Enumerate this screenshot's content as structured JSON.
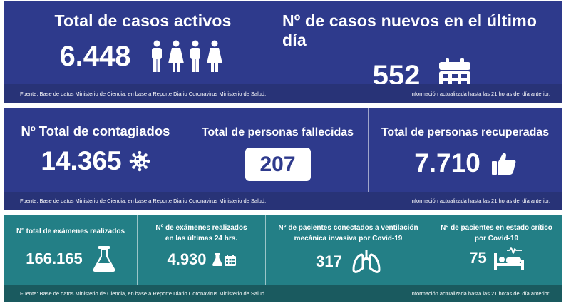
{
  "row1": {
    "active_cases": {
      "title": "Total de casos activos",
      "value": "6.448",
      "icon": "people-icon"
    },
    "new_cases": {
      "title": "Nº de casos nuevos en el último día",
      "value": "552",
      "icon": "calendar-icon"
    },
    "source": "Fuente: Base de datos Ministerio de Ciencia, en base a Reporte Diario Coronavirus Ministerio de Salud.",
    "updated": "Información actualizada hasta las 21 horas  del día anterior."
  },
  "row2": {
    "total_infected": {
      "title": "Nº Total de contagiados",
      "value": "14.365",
      "icon": "virus-icon"
    },
    "deceased": {
      "title": "Total de personas fallecidas",
      "value": "207"
    },
    "recovered": {
      "title": "Total de personas recuperadas",
      "value": "7.710",
      "icon": "thumbs-up-icon"
    },
    "source": "Fuente: Base de datos Ministerio de Ciencia, en base a Reporte Diario Coronavirus Ministerio de Salud.",
    "updated": "Información actualizada hasta las 21 horas  del día anterior."
  },
  "row3": {
    "exams_total": {
      "title": "Nº total de exámenes realizados",
      "value": "166.165",
      "icon": "flask-icon"
    },
    "exams_24h": {
      "title_line1": "Nº de exámenes realizados",
      "title_line2": "en las últimas 24 hrs.",
      "value": "4.930",
      "icon": "flask-calendar-icon"
    },
    "ventilation": {
      "title_line1": "N° de pacientes conectados a ventilación",
      "title_line2": "mecánica invasiva por Covid-19",
      "value": "317",
      "icon": "lungs-icon"
    },
    "critical": {
      "title_line1": "N° de pacientes en estado crítico",
      "title_line2": "por Covid-19",
      "value": "75",
      "icon": "hospital-bed-icon"
    },
    "source": "Fuente: Base de datos Ministerio de Ciencia, en base a Reporte Diario Coronavirus Ministerio de Salud.",
    "updated": "Información actualizada hasta las 21 horas  del día anterior."
  },
  "colors": {
    "navy_panel": "#2e3a8c",
    "navy_footer": "#283377",
    "teal_panel": "#237f86",
    "teal_footer": "#1a5a5f",
    "text": "#ffffff"
  }
}
